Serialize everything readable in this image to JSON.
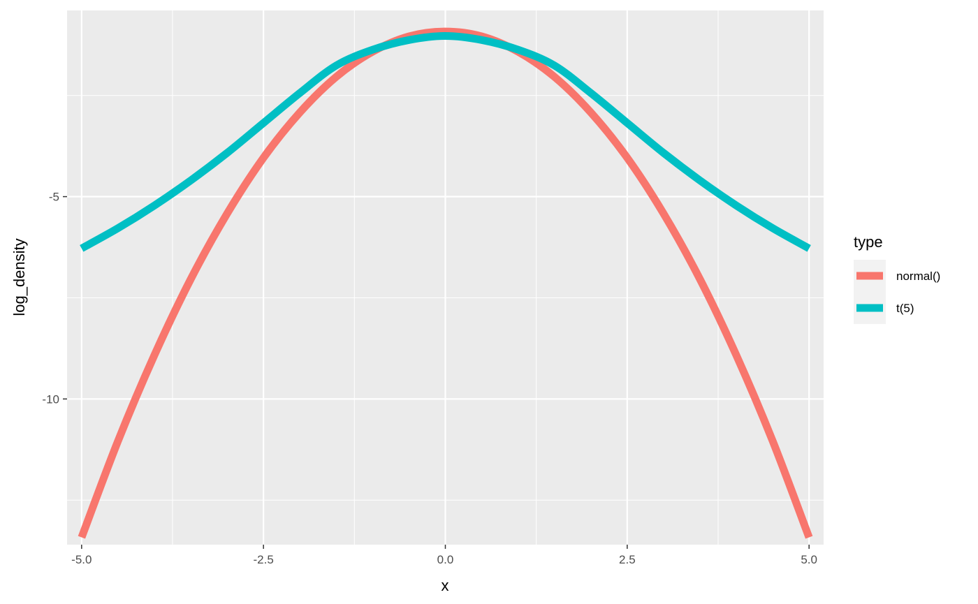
{
  "chart_data": {
    "type": "line",
    "xlabel": "x",
    "ylabel": "log_density",
    "xlim": [
      -5.2,
      5.2
    ],
    "ylim": [
      -13.6,
      -0.4
    ],
    "x_ticks": [
      -5.0,
      -2.5,
      0.0,
      2.5,
      5.0
    ],
    "x_tick_labels": [
      "-5.0",
      "-2.5",
      "0.0",
      "2.5",
      "5.0"
    ],
    "y_ticks": [
      -5,
      -10
    ],
    "y_tick_labels": [
      "-5",
      "-10"
    ],
    "grid": true,
    "legend": {
      "title": "type",
      "placement": "right",
      "entries": [
        "normal()",
        "t(5)"
      ]
    },
    "series": [
      {
        "name": "normal()",
        "color": "#F8766D",
        "x": [
          -5,
          -4.5,
          -4,
          -3.5,
          -3,
          -2.5,
          -2,
          -1.5,
          -1,
          -0.5,
          0,
          0.5,
          1,
          1.5,
          2,
          2.5,
          3,
          3.5,
          4,
          4.5,
          5
        ],
        "y": [
          -13.42,
          -11.04,
          -8.92,
          -7.04,
          -5.42,
          -4.04,
          -2.92,
          -2.04,
          -1.42,
          -1.04,
          -0.92,
          -1.04,
          -1.42,
          -2.04,
          -2.92,
          -4.04,
          -5.42,
          -7.04,
          -8.92,
          -11.04,
          -13.42
        ]
      },
      {
        "name": "t(5)",
        "color": "#00BFC4",
        "x": [
          -5,
          -4.5,
          -4,
          -3.5,
          -3,
          -2.5,
          -2,
          -1.5,
          -1,
          -0.5,
          0,
          0.5,
          1,
          1.5,
          2,
          2.5,
          3,
          3.5,
          4,
          4.5,
          5
        ],
        "y": [
          -6.28,
          -5.78,
          -5.22,
          -4.6,
          -3.92,
          -3.18,
          -2.44,
          -1.76,
          -1.37,
          -1.13,
          -1.03,
          -1.13,
          -1.37,
          -1.76,
          -2.44,
          -3.18,
          -3.92,
          -4.6,
          -5.22,
          -5.78,
          -6.28
        ]
      }
    ]
  }
}
